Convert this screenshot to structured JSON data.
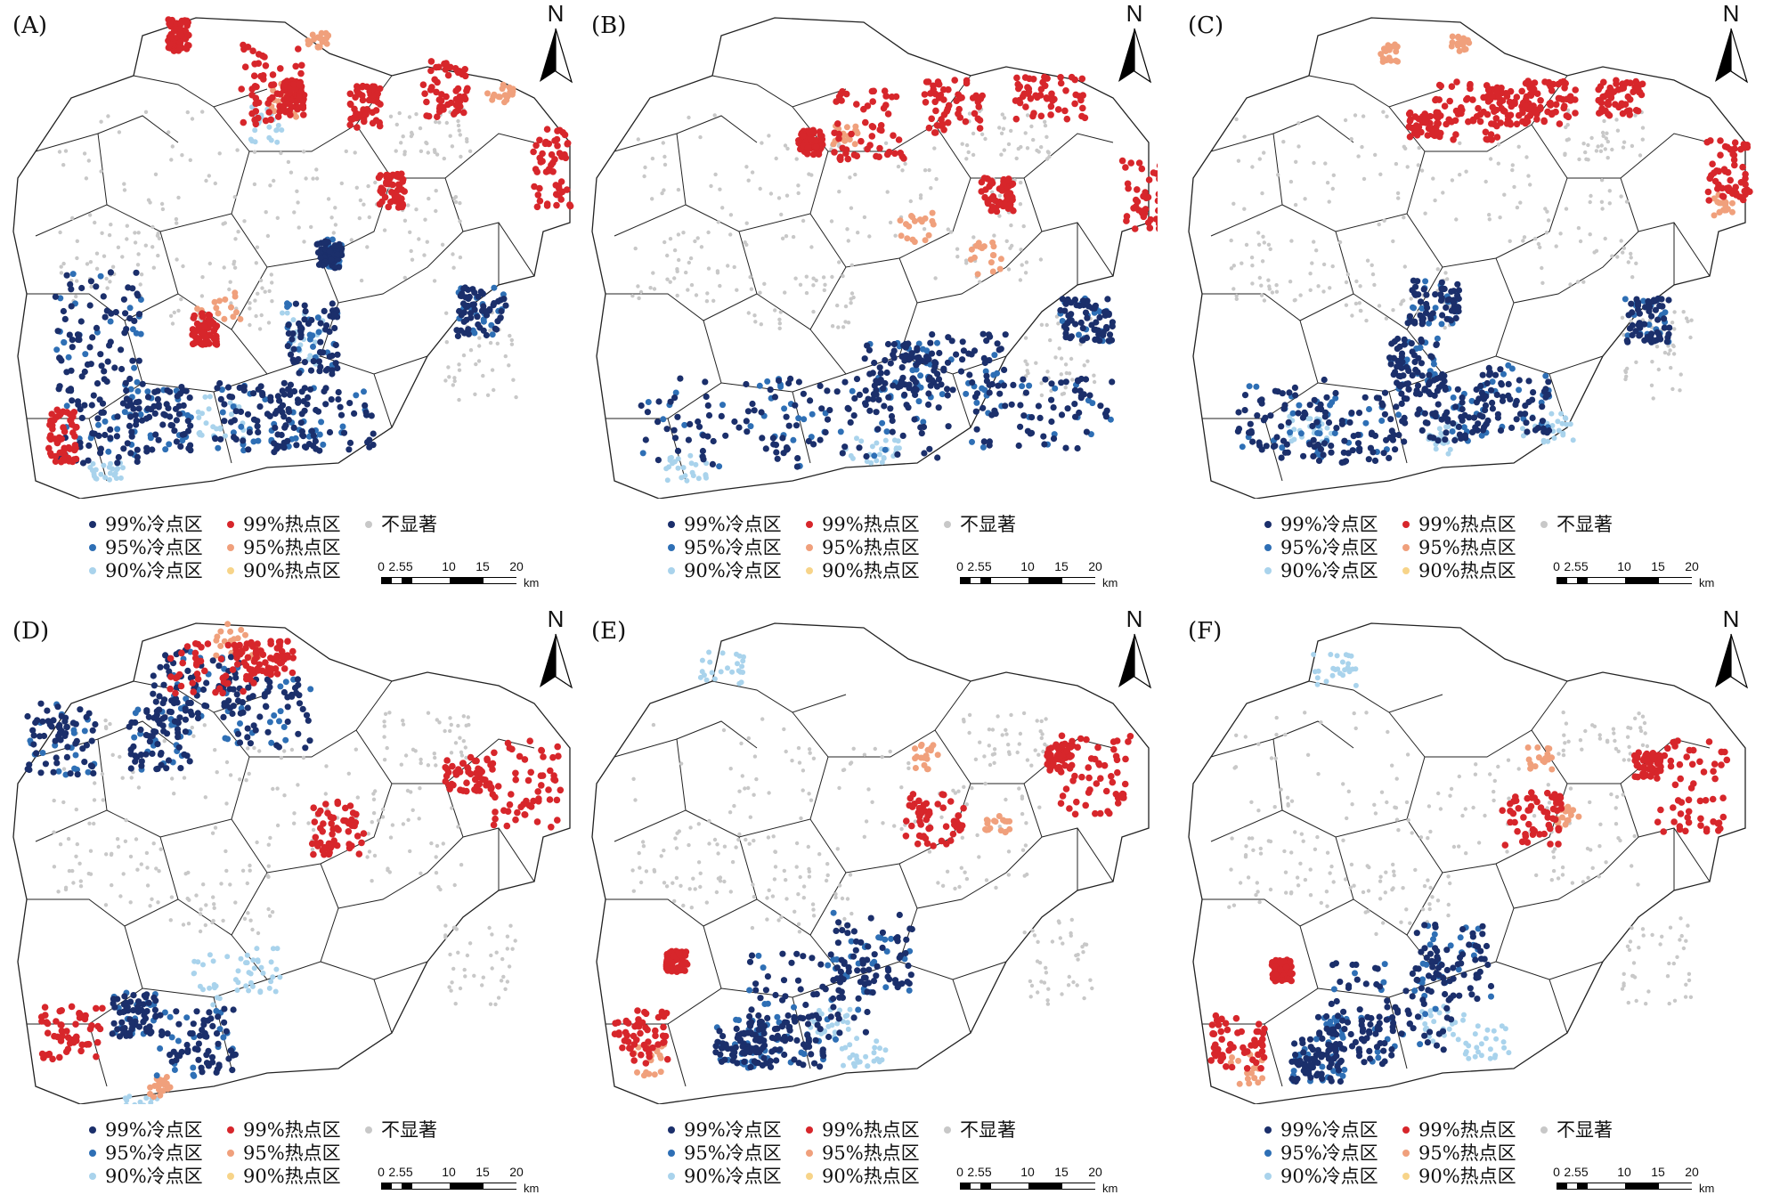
{
  "panels": [
    {
      "label": "(A)",
      "hot": [
        [
          305,
          95,
          34,
          45
        ],
        [
          330,
          110,
          12,
          20
        ],
        [
          410,
          120,
          18,
          24
        ],
        [
          500,
          100,
          25,
          35
        ],
        [
          620,
          190,
          22,
          45
        ],
        [
          440,
          215,
          15,
          20
        ],
        [
          200,
          40,
          12,
          18
        ],
        [
          230,
          370,
          14,
          18
        ],
        [
          70,
          490,
          16,
          30
        ]
      ],
      "cold": [
        [
          110,
          360,
          50,
          60
        ],
        [
          110,
          470,
          45,
          50
        ],
        [
          180,
          470,
          35,
          40
        ],
        [
          300,
          470,
          60,
          40
        ],
        [
          360,
          470,
          60,
          35
        ],
        [
          350,
          380,
          30,
          40
        ],
        [
          540,
          350,
          28,
          28
        ],
        [
          370,
          285,
          14,
          16
        ]
      ],
      "mid": [
        [
          340,
          380,
          25,
          30
        ],
        [
          250,
          470,
          30,
          25
        ],
        [
          120,
          530,
          20,
          10
        ],
        [
          300,
          140,
          20,
          20
        ]
      ],
      "hot95": [
        [
          320,
          110,
          18,
          22
        ],
        [
          245,
          350,
          25,
          25
        ],
        [
          560,
          105,
          20,
          10
        ],
        [
          360,
          45,
          14,
          10
        ]
      ]
    },
    {
      "label": "(B)",
      "hot": [
        [
          325,
          140,
          40,
          40
        ],
        [
          420,
          120,
          35,
          30
        ],
        [
          530,
          110,
          40,
          25
        ],
        [
          640,
          220,
          30,
          40
        ],
        [
          470,
          220,
          18,
          20
        ],
        [
          260,
          160,
          14,
          14
        ]
      ],
      "cold": [
        [
          160,
          475,
          90,
          50
        ],
        [
          320,
          470,
          100,
          45
        ],
        [
          420,
          410,
          60,
          35
        ],
        [
          520,
          465,
          80,
          40
        ],
        [
          570,
          360,
          30,
          25
        ],
        [
          360,
          420,
          40,
          35
        ]
      ],
      "mid": [
        [
          120,
          525,
          30,
          15
        ],
        [
          330,
          505,
          30,
          15
        ]
      ],
      "hot95": [
        [
          300,
          150,
          14,
          12
        ],
        [
          380,
          255,
          20,
          18
        ],
        [
          460,
          290,
          20,
          18
        ]
      ]
    },
    {
      "label": "(C)",
      "hot": [
        [
          330,
          125,
          40,
          35
        ],
        [
          280,
          140,
          18,
          14
        ],
        [
          380,
          120,
          30,
          22
        ],
        [
          420,
          115,
          30,
          25
        ],
        [
          500,
          110,
          25,
          20
        ],
        [
          620,
          190,
          25,
          35
        ]
      ],
      "cold": [
        [
          120,
          470,
          50,
          45
        ],
        [
          210,
          480,
          50,
          40
        ],
        [
          310,
          460,
          40,
          40
        ],
        [
          380,
          450,
          40,
          40
        ],
        [
          290,
          340,
          30,
          25
        ],
        [
          270,
          410,
          30,
          30
        ],
        [
          530,
          360,
          25,
          25
        ]
      ],
      "mid": [
        [
          150,
          480,
          25,
          20
        ],
        [
          300,
          490,
          20,
          20
        ],
        [
          420,
          480,
          30,
          20
        ]
      ],
      "hot95": [
        [
          615,
          230,
          12,
          12
        ],
        [
          240,
          60,
          10,
          10
        ],
        [
          320,
          50,
          10,
          10
        ]
      ]
    },
    {
      "label": "(D)",
      "hot": [
        [
          240,
          70,
          50,
          30
        ],
        [
          300,
          60,
          30,
          20
        ],
        [
          380,
          250,
          30,
          30
        ],
        [
          590,
          200,
          40,
          55
        ],
        [
          530,
          190,
          30,
          20
        ],
        [
          80,
          480,
          35,
          30
        ]
      ],
      "cold": [
        [
          220,
          90,
          50,
          40
        ],
        [
          300,
          120,
          50,
          40
        ],
        [
          180,
          150,
          35,
          35
        ],
        [
          70,
          150,
          40,
          40
        ],
        [
          220,
          490,
          45,
          40
        ],
        [
          150,
          460,
          25,
          25
        ]
      ],
      "mid": [
        [
          250,
          420,
          35,
          30
        ],
        [
          290,
          410,
          30,
          25
        ],
        [
          160,
          560,
          20,
          10
        ]
      ],
      "hot95": [
        [
          270,
          40,
          30,
          20
        ],
        [
          180,
          540,
          12,
          12
        ]
      ]
    },
    {
      "label": "(E)",
      "hot": [
        [
          400,
          240,
          35,
          30
        ],
        [
          580,
          190,
          40,
          45
        ],
        [
          540,
          170,
          15,
          15
        ],
        [
          70,
          485,
          30,
          30
        ],
        [
          110,
          400,
          12,
          12
        ]
      ],
      "cold": [
        [
          260,
          440,
          70,
          50
        ],
        [
          330,
          390,
          45,
          45
        ],
        [
          230,
          490,
          45,
          30
        ],
        [
          180,
          490,
          30,
          25
        ]
      ],
      "mid": [
        [
          160,
          70,
          25,
          20
        ],
        [
          280,
          470,
          25,
          20
        ],
        [
          320,
          500,
          25,
          20
        ]
      ],
      "hot95": [
        [
          390,
          170,
          14,
          14
        ],
        [
          470,
          245,
          14,
          14
        ],
        [
          80,
          510,
          18,
          18
        ]
      ]
    },
    {
      "label": "(F)",
      "hot": [
        [
          400,
          240,
          35,
          30
        ],
        [
          580,
          200,
          40,
          55
        ],
        [
          530,
          180,
          15,
          15
        ],
        [
          70,
          490,
          30,
          30
        ],
        [
          120,
          410,
          12,
          12
        ]
      ],
      "cold": [
        [
          240,
          450,
          70,
          50
        ],
        [
          310,
          400,
          45,
          45
        ],
        [
          200,
          490,
          45,
          30
        ],
        [
          160,
          510,
          30,
          25
        ]
      ],
      "mid": [
        [
          180,
          70,
          25,
          20
        ],
        [
          300,
          470,
          25,
          20
        ],
        [
          350,
          490,
          25,
          20
        ]
      ],
      "hot95": [
        [
          410,
          170,
          14,
          14
        ],
        [
          440,
          240,
          14,
          14
        ],
        [
          80,
          520,
          18,
          18
        ]
      ]
    }
  ],
  "legend": [
    {
      "text": "99%冷点区",
      "color": "#1b2f6b"
    },
    {
      "text": "95%冷点区",
      "color": "#2e6fb5"
    },
    {
      "text": "90%冷点区",
      "color": "#a9d3ec"
    },
    {
      "text": "99%热点区",
      "color": "#d7262b"
    },
    {
      "text": "95%热点区",
      "color": "#f0a07c"
    },
    {
      "text": "90%热点区",
      "color": "#f7d489"
    },
    {
      "text": "不显著",
      "color": "#c8c8c8"
    }
  ],
  "north": "N",
  "scale": {
    "ticks": [
      "0",
      "2.55",
      "10",
      "15",
      "20"
    ],
    "unit": "km"
  },
  "colors": {
    "notSignificant": "#c8c8c8",
    "boundary": "#222222"
  }
}
